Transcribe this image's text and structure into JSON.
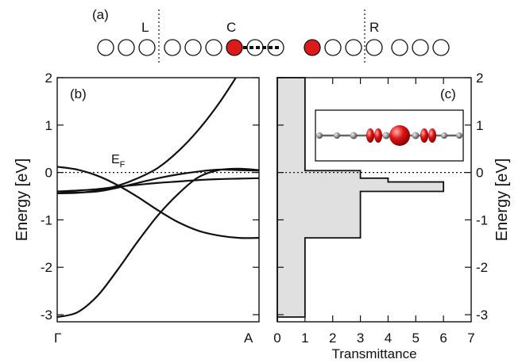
{
  "chart_data": [
    {
      "panel": "(a)",
      "type": "diagram",
      "region_labels": [
        "L",
        "C",
        "R"
      ],
      "atom_count": 16,
      "highlighted_atoms": [
        6,
        9
      ],
      "colors": {
        "atom_fill": "#ffffff",
        "highlight_fill": "#dd1a1a",
        "outline": "#111111"
      }
    },
    {
      "panel": "(b)",
      "type": "line",
      "ylabel": "Energy [eV]",
      "ylim": [
        -3.15,
        2.0
      ],
      "yticks": [
        -3,
        -2,
        -1,
        0,
        1,
        2
      ],
      "xlim": [
        0,
        1
      ],
      "xtick_labels": [
        "Γ",
        "A"
      ],
      "fermi_label": {
        "main": "E",
        "sub": "F"
      },
      "fermi_level": 0,
      "series": [
        {
          "x": [
            0,
            0.1,
            0.2,
            0.3,
            0.4,
            0.5,
            0.6,
            0.7,
            0.8,
            0.9,
            1.0
          ],
          "values": [
            -0.44,
            -0.43,
            -0.38,
            -0.28,
            -0.12,
            0.1,
            0.45,
            0.9,
            1.45,
            2.1,
            2.8
          ]
        },
        {
          "x": [
            0,
            0.1,
            0.2,
            0.3,
            0.4,
            0.5,
            0.6,
            0.7,
            0.8,
            0.9,
            1.0
          ],
          "values": [
            -3.05,
            -2.95,
            -2.6,
            -2.05,
            -1.45,
            -0.9,
            -0.45,
            -0.1,
            0.05,
            0.08,
            0.05
          ]
        },
        {
          "x": [
            0,
            0.1,
            0.2,
            0.3,
            0.4,
            0.5,
            0.6,
            0.7,
            0.8,
            0.9,
            1.0
          ],
          "values": [
            0.12,
            0.06,
            -0.07,
            -0.27,
            -0.52,
            -0.8,
            -1.05,
            -1.23,
            -1.33,
            -1.38,
            -1.38
          ]
        },
        {
          "x": [
            0,
            0.1,
            0.2,
            0.3,
            0.4,
            0.5,
            0.6,
            0.7,
            0.8,
            0.9,
            1.0
          ],
          "values": [
            -0.4,
            -0.38,
            -0.35,
            -0.3,
            -0.26,
            -0.22,
            -0.19,
            -0.16,
            -0.14,
            -0.13,
            -0.12
          ]
        },
        {
          "x": [
            0,
            0.1,
            0.2,
            0.3,
            0.4,
            0.5,
            0.6,
            0.7,
            0.8,
            0.9,
            1.0
          ],
          "values": [
            -0.4,
            -0.42,
            -0.4,
            -0.32,
            -0.22,
            -0.12,
            -0.04,
            0.02,
            0.06,
            0.05,
            0.04
          ]
        }
      ]
    },
    {
      "panel": "(c)",
      "type": "area",
      "xlabel": "Transmittance",
      "ylabel": "Energy [eV]",
      "xlim": [
        0,
        7
      ],
      "xticks": [
        0,
        1,
        2,
        3,
        4,
        5,
        6,
        7
      ],
      "ylim": [
        -3.15,
        2.0
      ],
      "yticks": [
        -3,
        -2,
        -1,
        0,
        1,
        2
      ],
      "fill_color": "#e0e0e0",
      "transmission_steps": [
        {
          "e0": -3.15,
          "e1": -3.05,
          "t": 0
        },
        {
          "e0": -3.05,
          "e1": -1.38,
          "t": 1
        },
        {
          "e0": -1.38,
          "e1": -0.4,
          "t": 3
        },
        {
          "e0": -0.4,
          "e1": -0.2,
          "t": 6
        },
        {
          "e0": -0.2,
          "e1": -0.12,
          "t": 4
        },
        {
          "e0": -0.12,
          "e1": 0.04,
          "t": 3
        },
        {
          "e0": 0.04,
          "e1": 2.0,
          "t": 1
        }
      ],
      "inset": {
        "type": "molecule",
        "atom_color": "#888888",
        "orbital_color": "#cc1010"
      }
    }
  ]
}
